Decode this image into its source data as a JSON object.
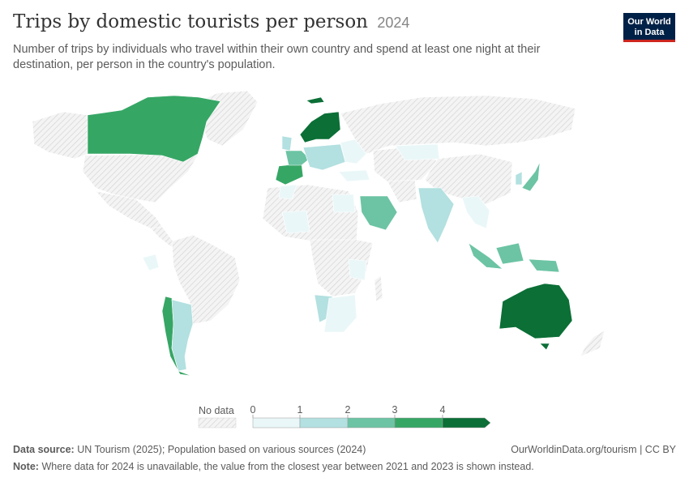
{
  "header": {
    "title": "Trips by domestic tourists per person",
    "year": "2024",
    "subtitle": "Number of trips by individuals who travel within their own country and spend at least one night at their destination, per person in the country's population."
  },
  "logo": {
    "line1": "Our World",
    "line2": "in Data"
  },
  "colors": {
    "no_data": "hatched light grey",
    "bins": [
      "#eaf7f8",
      "#b3e0e0",
      "#6cc4a4",
      "#36a665",
      "#0b6f36"
    ]
  },
  "legend": {
    "no_data_label": "No data",
    "ticks": [
      "0",
      "1",
      "2",
      "3",
      "4"
    ]
  },
  "chart_data": {
    "type": "heatmap",
    "kind": "choropleth world map",
    "bins": [
      {
        "range": "0–1",
        "color": "#eaf7f8"
      },
      {
        "range": "1–2",
        "color": "#b3e0e0"
      },
      {
        "range": "2–3",
        "color": "#6cc4a4"
      },
      {
        "range": "3–4",
        "color": "#36a665"
      },
      {
        "range": ">4",
        "color": "#0b6f36"
      }
    ],
    "regions": [
      {
        "region": "Canada",
        "bin": 3
      },
      {
        "region": "Norway",
        "bin": 4
      },
      {
        "region": "Sweden",
        "bin": 4
      },
      {
        "region": "Finland",
        "bin": 4
      },
      {
        "region": "Spain",
        "bin": 3
      },
      {
        "region": "France",
        "bin": 2
      },
      {
        "region": "Australia",
        "bin": 4
      },
      {
        "region": "Chile",
        "bin": 2
      },
      {
        "region": "Argentina",
        "bin": 1
      },
      {
        "region": "Saudi Arabia",
        "bin": 2
      },
      {
        "region": "India",
        "bin": 1
      },
      {
        "region": "Indonesia",
        "bin": 2
      },
      {
        "region": "Japan",
        "bin": 2
      },
      {
        "region": "Namibia",
        "bin": 1
      },
      {
        "region": "South Africa",
        "bin": 0
      }
    ]
  },
  "footer": {
    "source_label": "Data source:",
    "source_text": "UN Tourism (2025); Population based on various sources (2024)",
    "url": "OurWorldinData.org/tourism | CC BY",
    "note_label": "Note:",
    "note_text": "Where data for 2024 is unavailable, the value from the closest year between 2021 and 2023 is shown instead."
  }
}
